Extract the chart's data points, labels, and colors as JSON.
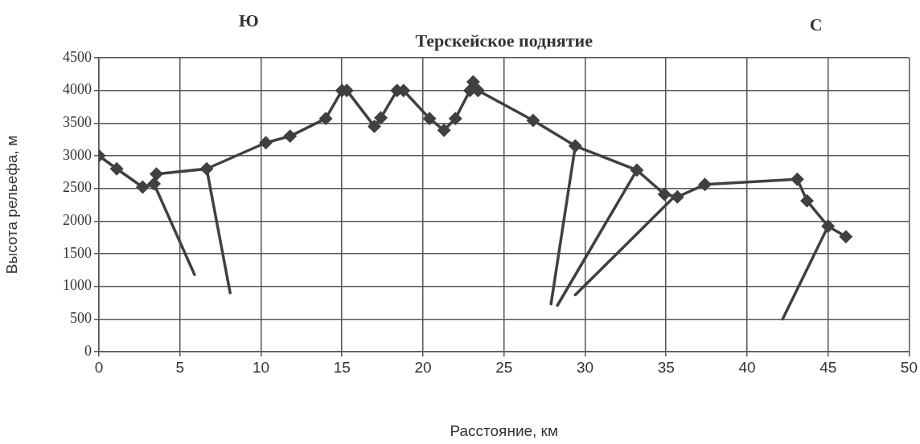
{
  "chart_data": {
    "type": "line",
    "xlabel": "Расстояние, км",
    "ylabel": "Высота рельефа, м",
    "xlim": [
      0,
      50
    ],
    "xticks": [
      0,
      5,
      10,
      15,
      20,
      25,
      30,
      35,
      40,
      45,
      50
    ],
    "ylim": [
      0,
      4500
    ],
    "yticks": [
      0,
      500,
      1000,
      1500,
      2000,
      2500,
      3000,
      3500,
      4000,
      4500
    ],
    "grid": true,
    "legend": false,
    "line_style": "solid",
    "annotations": [
      "Ю",
      "С",
      "Терскейское поднятие"
    ],
    "series": [
      {
        "color": "#404040",
        "marker": "diamond",
        "x": [
          0,
          1.1,
          2.7,
          3.4,
          3.55,
          6.65,
          10.3,
          11.8,
          14.0,
          15.0,
          15.3,
          17.0,
          17.4,
          18.4,
          18.8,
          20.4,
          21.3,
          22.0,
          22.9,
          23.1,
          23.4,
          26.8,
          29.4,
          33.2,
          34.9,
          35.7,
          37.4,
          43.1,
          43.7,
          45.0,
          46.1
        ],
        "values": [
          3000,
          2800,
          2520,
          2570,
          2720,
          2800,
          3200,
          3300,
          3570,
          4000,
          4000,
          3450,
          3580,
          4000,
          4000,
          3570,
          3390,
          3570,
          4000,
          4130,
          4000,
          3540,
          3150,
          2780,
          2410,
          2370,
          2560,
          2640,
          2310,
          1920,
          1760
        ]
      },
      {
        "color": "#404040",
        "marker": "none",
        "x": [
          3.4,
          5.9
        ],
        "values": [
          2570,
          1180
        ]
      },
      {
        "color": "#404040",
        "marker": "none",
        "x": [
          6.65,
          8.1
        ],
        "values": [
          2800,
          900
        ]
      },
      {
        "color": "#404040",
        "marker": "none",
        "x": [
          29.4,
          27.9
        ],
        "values": [
          3150,
          730
        ]
      },
      {
        "color": "#404040",
        "marker": "none",
        "x": [
          33.2,
          28.3
        ],
        "values": [
          2780,
          710
        ]
      },
      {
        "color": "#404040",
        "marker": "none",
        "x": [
          35.5,
          29.4
        ],
        "values": [
          2370,
          870
        ]
      },
      {
        "color": "#404040",
        "marker": "none",
        "x": [
          45.0,
          42.2
        ],
        "values": [
          1920,
          500
        ]
      }
    ]
  }
}
